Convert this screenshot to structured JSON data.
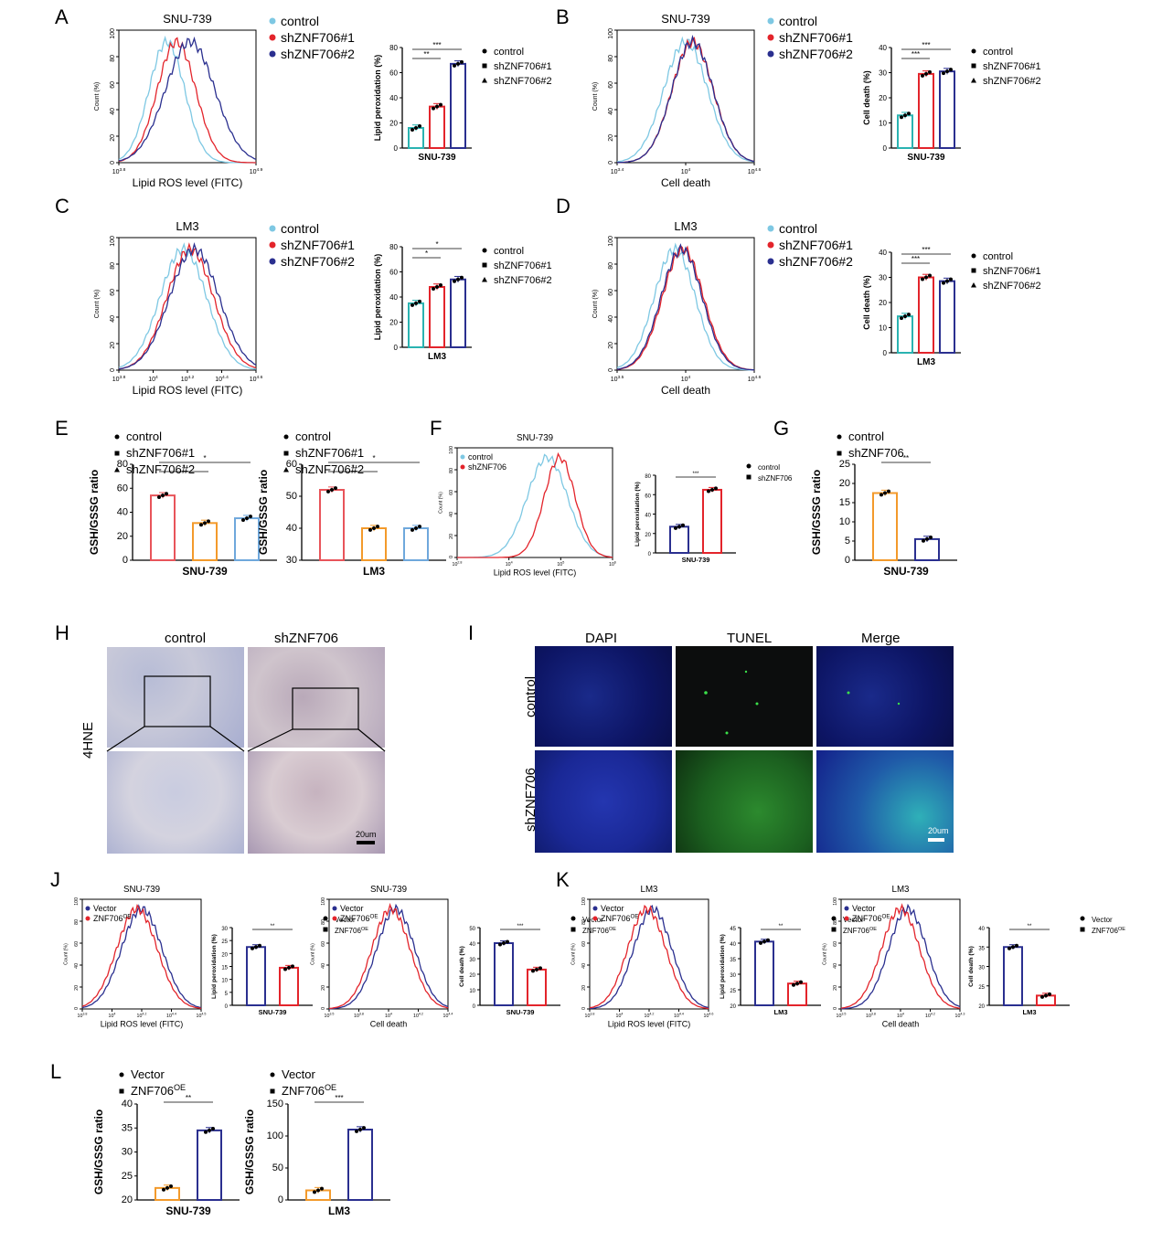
{
  "panel_labels": [
    "A",
    "B",
    "C",
    "D",
    "E",
    "F",
    "G",
    "H",
    "I",
    "J",
    "K",
    "L"
  ],
  "colors": {
    "control": "#7ec8e3",
    "shA": "#e3242b",
    "shB": "#2a2f8f",
    "teal": "#2ab3b1",
    "orange": "#f39a2b",
    "blue": "#3a47a0",
    "gbar": "#2d7fd6",
    "lightblue": "#6fa8dc"
  },
  "chart_data": [
    {
      "id": "A-hist",
      "type": "line",
      "title": "SNU-739",
      "xlabel": "Lipid ROS level (FITC)",
      "ylabel": "Count (%)",
      "yticks": [
        "0",
        "20",
        "40",
        "60",
        "80",
        "100"
      ],
      "xtick_min": "10",
      "xtick_min_exp": "3.8",
      "xtick_max": "10",
      "xtick_max_exp": "4.9",
      "series": [
        {
          "name": "control",
          "peak": 0.35,
          "width": 0.13
        },
        {
          "name": "shZNF706#1",
          "peak": 0.42,
          "width": 0.14
        },
        {
          "name": "shZNF706#2",
          "peak": 0.52,
          "width": 0.18
        }
      ],
      "legend": [
        "control",
        "shZNF706#1",
        "shZNF706#2"
      ]
    },
    {
      "id": "A-bar",
      "type": "bar",
      "ylabel": "Lipid peroxidation (%)",
      "xlabel": "SNU-739",
      "ylim": [
        0,
        80
      ],
      "yticks": [
        "0",
        "20",
        "40",
        "60",
        "80"
      ],
      "categories": [
        "control",
        "shZNF706#1",
        "shZNF706#2"
      ],
      "values": [
        16,
        33,
        67
      ],
      "sig": [
        {
          "from": 0,
          "to": 1,
          "text": "**"
        },
        {
          "from": 0,
          "to": 2,
          "text": "***"
        }
      ],
      "legend": [
        "control",
        "shZNF706#1",
        "shZNF706#2"
      ]
    },
    {
      "id": "B-hist",
      "type": "line",
      "title": "SNU-739",
      "xlabel": "Cell death",
      "ylabel": "Count (%)",
      "yticks": [
        "0",
        "20",
        "40",
        "60",
        "80",
        "100"
      ],
      "xtick_min": "10",
      "xtick_min_exp": "3.4",
      "xtick_mid": "10",
      "xtick_mid_exp": "4",
      "xtick_max": "10",
      "xtick_max_exp": "4.6",
      "series": [
        {
          "name": "control",
          "peak": 0.5,
          "width": 0.16
        },
        {
          "name": "shZNF706#1",
          "peak": 0.55,
          "width": 0.15
        },
        {
          "name": "shZNF706#2",
          "peak": 0.55,
          "width": 0.15
        }
      ],
      "legend": [
        "control",
        "shZNF706#1",
        "shZNF706#2"
      ]
    },
    {
      "id": "B-bar",
      "type": "bar",
      "ylabel": "Cell death (%)",
      "xlabel": "SNU-739",
      "ylim": [
        0,
        40
      ],
      "yticks": [
        "0",
        "10",
        "20",
        "30",
        "40"
      ],
      "categories": [
        "control",
        "shZNF706#1",
        "shZNF706#2"
      ],
      "values": [
        13,
        29.5,
        30.5
      ],
      "sig": [
        {
          "from": 0,
          "to": 1,
          "text": "***"
        },
        {
          "from": 0,
          "to": 2,
          "text": "***"
        }
      ],
      "legend": [
        "control",
        "shZNF706#1",
        "shZNF706#2"
      ]
    },
    {
      "id": "C-hist",
      "type": "line",
      "title": "LM3",
      "xlabel": "Lipid ROS level (FITC)",
      "ylabel": "Count (%)",
      "yticks": [
        "0",
        "20",
        "40",
        "60",
        "80",
        "100"
      ],
      "xticks": [
        "10^3.8",
        "10^4",
        "10^4.2",
        "10^4.4",
        "10^4.6"
      ],
      "series": [
        {
          "name": "control",
          "peak": 0.47,
          "width": 0.17
        },
        {
          "name": "shZNF706#1",
          "peak": 0.52,
          "width": 0.17
        },
        {
          "name": "shZNF706#2",
          "peak": 0.55,
          "width": 0.18
        }
      ],
      "legend": [
        "control",
        "shZNF706#1",
        "shZNF706#2"
      ]
    },
    {
      "id": "C-bar",
      "type": "bar",
      "ylabel": "Lipid peroxidation (%)",
      "xlabel": "LM3",
      "ylim": [
        0,
        80
      ],
      "yticks": [
        "0",
        "20",
        "40",
        "60",
        "80"
      ],
      "categories": [
        "control",
        "shZNF706#1",
        "shZNF706#2"
      ],
      "values": [
        35,
        48,
        54
      ],
      "sig": [
        {
          "from": 0,
          "to": 1,
          "text": "*"
        },
        {
          "from": 0,
          "to": 2,
          "text": "*"
        }
      ],
      "legend": [
        "control",
        "shZNF706#1",
        "shZNF706#2"
      ]
    },
    {
      "id": "D-hist",
      "type": "line",
      "title": "LM3",
      "xlabel": "Cell death",
      "ylabel": "Count (%)",
      "yticks": [
        "0",
        "20",
        "40",
        "60",
        "80",
        "100"
      ],
      "xticks": [
        "10^3.5",
        "10^4",
        "10^4.6"
      ],
      "series": [
        {
          "name": "control",
          "peak": 0.42,
          "width": 0.15
        },
        {
          "name": "shZNF706#1",
          "peak": 0.48,
          "width": 0.15
        },
        {
          "name": "shZNF706#2",
          "peak": 0.47,
          "width": 0.15
        }
      ],
      "legend": [
        "control",
        "shZNF706#1",
        "shZNF706#2"
      ]
    },
    {
      "id": "D-bar",
      "type": "bar",
      "ylabel": "Cell death (%)",
      "xlabel": "LM3",
      "ylim": [
        0,
        40
      ],
      "yticks": [
        "0",
        "10",
        "20",
        "30",
        "40"
      ],
      "categories": [
        "control",
        "shZNF706#1",
        "shZNF706#2"
      ],
      "values": [
        14.5,
        30,
        28.5
      ],
      "sig": [
        {
          "from": 0,
          "to": 1,
          "text": "***"
        },
        {
          "from": 0,
          "to": 2,
          "text": "***"
        }
      ],
      "legend": [
        "control",
        "shZNF706#1",
        "shZNF706#2"
      ]
    },
    {
      "id": "E1",
      "type": "bar",
      "ylabel": "GSH/GSSG ratio",
      "xlabel": "SNU-739",
      "ylim": [
        0,
        80
      ],
      "yticks": [
        "0",
        "20",
        "40",
        "60",
        "80"
      ],
      "categories": [
        "control",
        "shZNF706#1",
        "shZNF706#2"
      ],
      "values": [
        54,
        31,
        35
      ],
      "sig": [
        {
          "from": 0,
          "to": 1,
          "text": "*"
        },
        {
          "from": 0,
          "to": 2,
          "text": "*"
        }
      ],
      "legend": [
        "control",
        "shZNF706#1",
        "shZNF706#2"
      ]
    },
    {
      "id": "E2",
      "type": "bar",
      "ylabel": "GSH/GSSG ratio",
      "xlabel": "LM3",
      "ylim": [
        30,
        60
      ],
      "yticks": [
        "30",
        "40",
        "50",
        "60"
      ],
      "categories": [
        "control",
        "shZNF706#1",
        "shZNF706#2"
      ],
      "values": [
        52,
        40,
        40
      ],
      "sig": [
        {
          "from": 0,
          "to": 1,
          "text": "*"
        },
        {
          "from": 0,
          "to": 2,
          "text": "*"
        }
      ],
      "legend": [
        "control",
        "shZNF706#1",
        "shZNF706#2"
      ]
    },
    {
      "id": "F-hist",
      "type": "line",
      "title": "SNU-739",
      "xlabel": "Lipid ROS level (FITC)",
      "ylabel": "Count (%)",
      "yticks": [
        "0",
        "20",
        "40",
        "60",
        "80",
        "100"
      ],
      "xticks": [
        "10^2.8",
        "10^4",
        "10^5",
        "10^6"
      ],
      "series": [
        {
          "name": "control",
          "peak": 0.58,
          "width": 0.13
        },
        {
          "name": "shZNF706",
          "peak": 0.66,
          "width": 0.1
        }
      ],
      "legend": [
        "control",
        "shZNF706"
      ]
    },
    {
      "id": "F-bar",
      "type": "bar",
      "ylabel": "Lipid peroxidation (%)",
      "xlabel": "SNU-739",
      "ylim": [
        0,
        80
      ],
      "yticks": [
        "0",
        "20",
        "40",
        "60",
        "80"
      ],
      "categories": [
        "control",
        "shZNF706"
      ],
      "values": [
        27,
        65
      ],
      "sig": [
        {
          "from": 0,
          "to": 1,
          "text": "***"
        }
      ],
      "legend": [
        "control",
        "shZNF706"
      ]
    },
    {
      "id": "G",
      "type": "bar",
      "ylabel": "GSH/GSSG ratio",
      "xlabel": "SNU-739",
      "ylim": [
        0,
        25
      ],
      "yticks": [
        "0",
        "5",
        "10",
        "15",
        "20",
        "25"
      ],
      "categories": [
        "control",
        "shZNF706"
      ],
      "values": [
        17.5,
        5.5
      ],
      "sig": [
        {
          "from": 0,
          "to": 1,
          "text": "**"
        }
      ],
      "legend": [
        "control",
        "shZNF706"
      ]
    },
    {
      "id": "J1-hist",
      "type": "line",
      "title": "SNU-739",
      "xlabel": "Lipid ROS level (FITC)",
      "ylabel": "Count (%)",
      "yticks": [
        "0",
        "20",
        "40",
        "60",
        "80",
        "100"
      ],
      "xticks": [
        "10^3.8",
        "10^4",
        "10^4.2",
        "10^4.4",
        "10^4.5"
      ],
      "series": [
        {
          "name": "Vector",
          "peak": 0.5,
          "width": 0.17
        },
        {
          "name": "ZNF706OE",
          "peak": 0.46,
          "width": 0.17
        }
      ],
      "legend": [
        "Vector",
        "ZNF706OE"
      ]
    },
    {
      "id": "J1-bar",
      "type": "bar",
      "ylabel": "Lipid peroxidation (%)",
      "xlabel": "SNU-739",
      "ylim": [
        0,
        30
      ],
      "yticks": [
        "0",
        "5",
        "10",
        "15",
        "20",
        "25",
        "30"
      ],
      "categories": [
        "Vector",
        "ZNF706OE"
      ],
      "values": [
        22.5,
        14.5
      ],
      "sig": [
        {
          "from": 0,
          "to": 1,
          "text": "**"
        }
      ],
      "legend": [
        "Vector",
        "ZNF706OE"
      ]
    },
    {
      "id": "J2-hist",
      "type": "line",
      "title": "SNU-739",
      "xlabel": "Cell death",
      "ylabel": "Count (%)",
      "yticks": [
        "0",
        "20",
        "40",
        "60",
        "80",
        "100"
      ],
      "xticks": [
        "10^3.5",
        "10^3.8",
        "10^4",
        "10^4.2",
        "10^4.4"
      ],
      "series": [
        {
          "name": "Vector",
          "peak": 0.56,
          "width": 0.16
        },
        {
          "name": "ZNF706OE",
          "peak": 0.52,
          "width": 0.16
        }
      ],
      "legend": [
        "Vector",
        "ZNF706OE"
      ]
    },
    {
      "id": "J2-bar",
      "type": "bar",
      "ylabel": "Cell death (%)",
      "xlabel": "SNU-739",
      "ylim": [
        0,
        50
      ],
      "yticks": [
        "0",
        "10",
        "20",
        "30",
        "40",
        "50"
      ],
      "categories": [
        "Vector",
        "ZNF706OE"
      ],
      "values": [
        40,
        23
      ],
      "sig": [
        {
          "from": 0,
          "to": 1,
          "text": "***"
        }
      ],
      "legend": [
        "Vector",
        "ZNF706OE"
      ]
    },
    {
      "id": "K1-hist",
      "type": "line",
      "title": "LM3",
      "xlabel": "Lipid ROS level (FITC)",
      "ylabel": "Count (%)",
      "yticks": [
        "0",
        "20",
        "40",
        "60",
        "80",
        "100"
      ],
      "xticks": [
        "10^3.8",
        "10^4",
        "10^4.2",
        "10^4.4",
        "10^4.6"
      ],
      "series": [
        {
          "name": "Vector",
          "peak": 0.53,
          "width": 0.16
        },
        {
          "name": "ZNF706OE",
          "peak": 0.48,
          "width": 0.16
        }
      ],
      "legend": [
        "Vector",
        "ZNF706OE"
      ]
    },
    {
      "id": "K1-bar",
      "type": "bar",
      "ylabel": "Lipid peroxidation (%)",
      "xlabel": "LM3",
      "ylim": [
        20,
        45
      ],
      "yticks": [
        "20",
        "25",
        "30",
        "35",
        "40",
        "45"
      ],
      "categories": [
        "Vector",
        "ZNF706OE"
      ],
      "values": [
        40.5,
        27
      ],
      "sig": [
        {
          "from": 0,
          "to": 1,
          "text": "**"
        }
      ],
      "legend": [
        "Vector",
        "ZNF706OE"
      ]
    },
    {
      "id": "K2-hist",
      "type": "line",
      "title": "LM3",
      "xlabel": "Cell death",
      "ylabel": "Count (%)",
      "yticks": [
        "0",
        "20",
        "40",
        "60",
        "80",
        "100"
      ],
      "xticks": [
        "10^3.5",
        "10^3.8",
        "10^4",
        "10^4.2",
        "10^4.3"
      ],
      "series": [
        {
          "name": "Vector",
          "peak": 0.56,
          "width": 0.16
        },
        {
          "name": "ZNF706OE",
          "peak": 0.5,
          "width": 0.16
        }
      ],
      "legend": [
        "Vector",
        "ZNF706OE"
      ]
    },
    {
      "id": "K2-bar",
      "type": "bar",
      "ylabel": "Cell death (%)",
      "xlabel": "LM3",
      "ylim": [
        20,
        40
      ],
      "yticks": [
        "20",
        "25",
        "30",
        "35",
        "40"
      ],
      "categories": [
        "Vector",
        "ZNF706OE"
      ],
      "values": [
        35,
        22.5
      ],
      "sig": [
        {
          "from": 0,
          "to": 1,
          "text": "**"
        }
      ],
      "legend": [
        "Vector",
        "ZNF706OE"
      ]
    },
    {
      "id": "L1",
      "type": "bar",
      "ylabel": "GSH/GSSG ratio",
      "xlabel": "SNU-739",
      "ylim": [
        20,
        40
      ],
      "yticks": [
        "20",
        "25",
        "30",
        "35",
        "40"
      ],
      "categories": [
        "Vector",
        "ZNF706OE"
      ],
      "values": [
        22.5,
        34.5
      ],
      "sig": [
        {
          "from": 0,
          "to": 1,
          "text": "**"
        }
      ],
      "legend": [
        "Vector",
        "ZNF706OE"
      ]
    },
    {
      "id": "L2",
      "type": "bar",
      "ylabel": "GSH/GSSG ratio",
      "xlabel": "LM3",
      "ylim": [
        0,
        150
      ],
      "yticks": [
        "0",
        "50",
        "100",
        "150"
      ],
      "categories": [
        "Vector",
        "ZNF706OE"
      ],
      "values": [
        15,
        110
      ],
      "sig": [
        {
          "from": 0,
          "to": 1,
          "text": "***"
        }
      ],
      "legend": [
        "Vector",
        "ZNF706OE"
      ]
    }
  ],
  "panel_H": {
    "col_labels": [
      "control",
      "shZNF706"
    ],
    "row_label": "4HNE",
    "scale": "20um"
  },
  "panel_I": {
    "col_labels": [
      "DAPI",
      "TUNEL",
      "Merge"
    ],
    "row_labels": [
      "control",
      "shZNF706"
    ],
    "scale": "20um"
  }
}
